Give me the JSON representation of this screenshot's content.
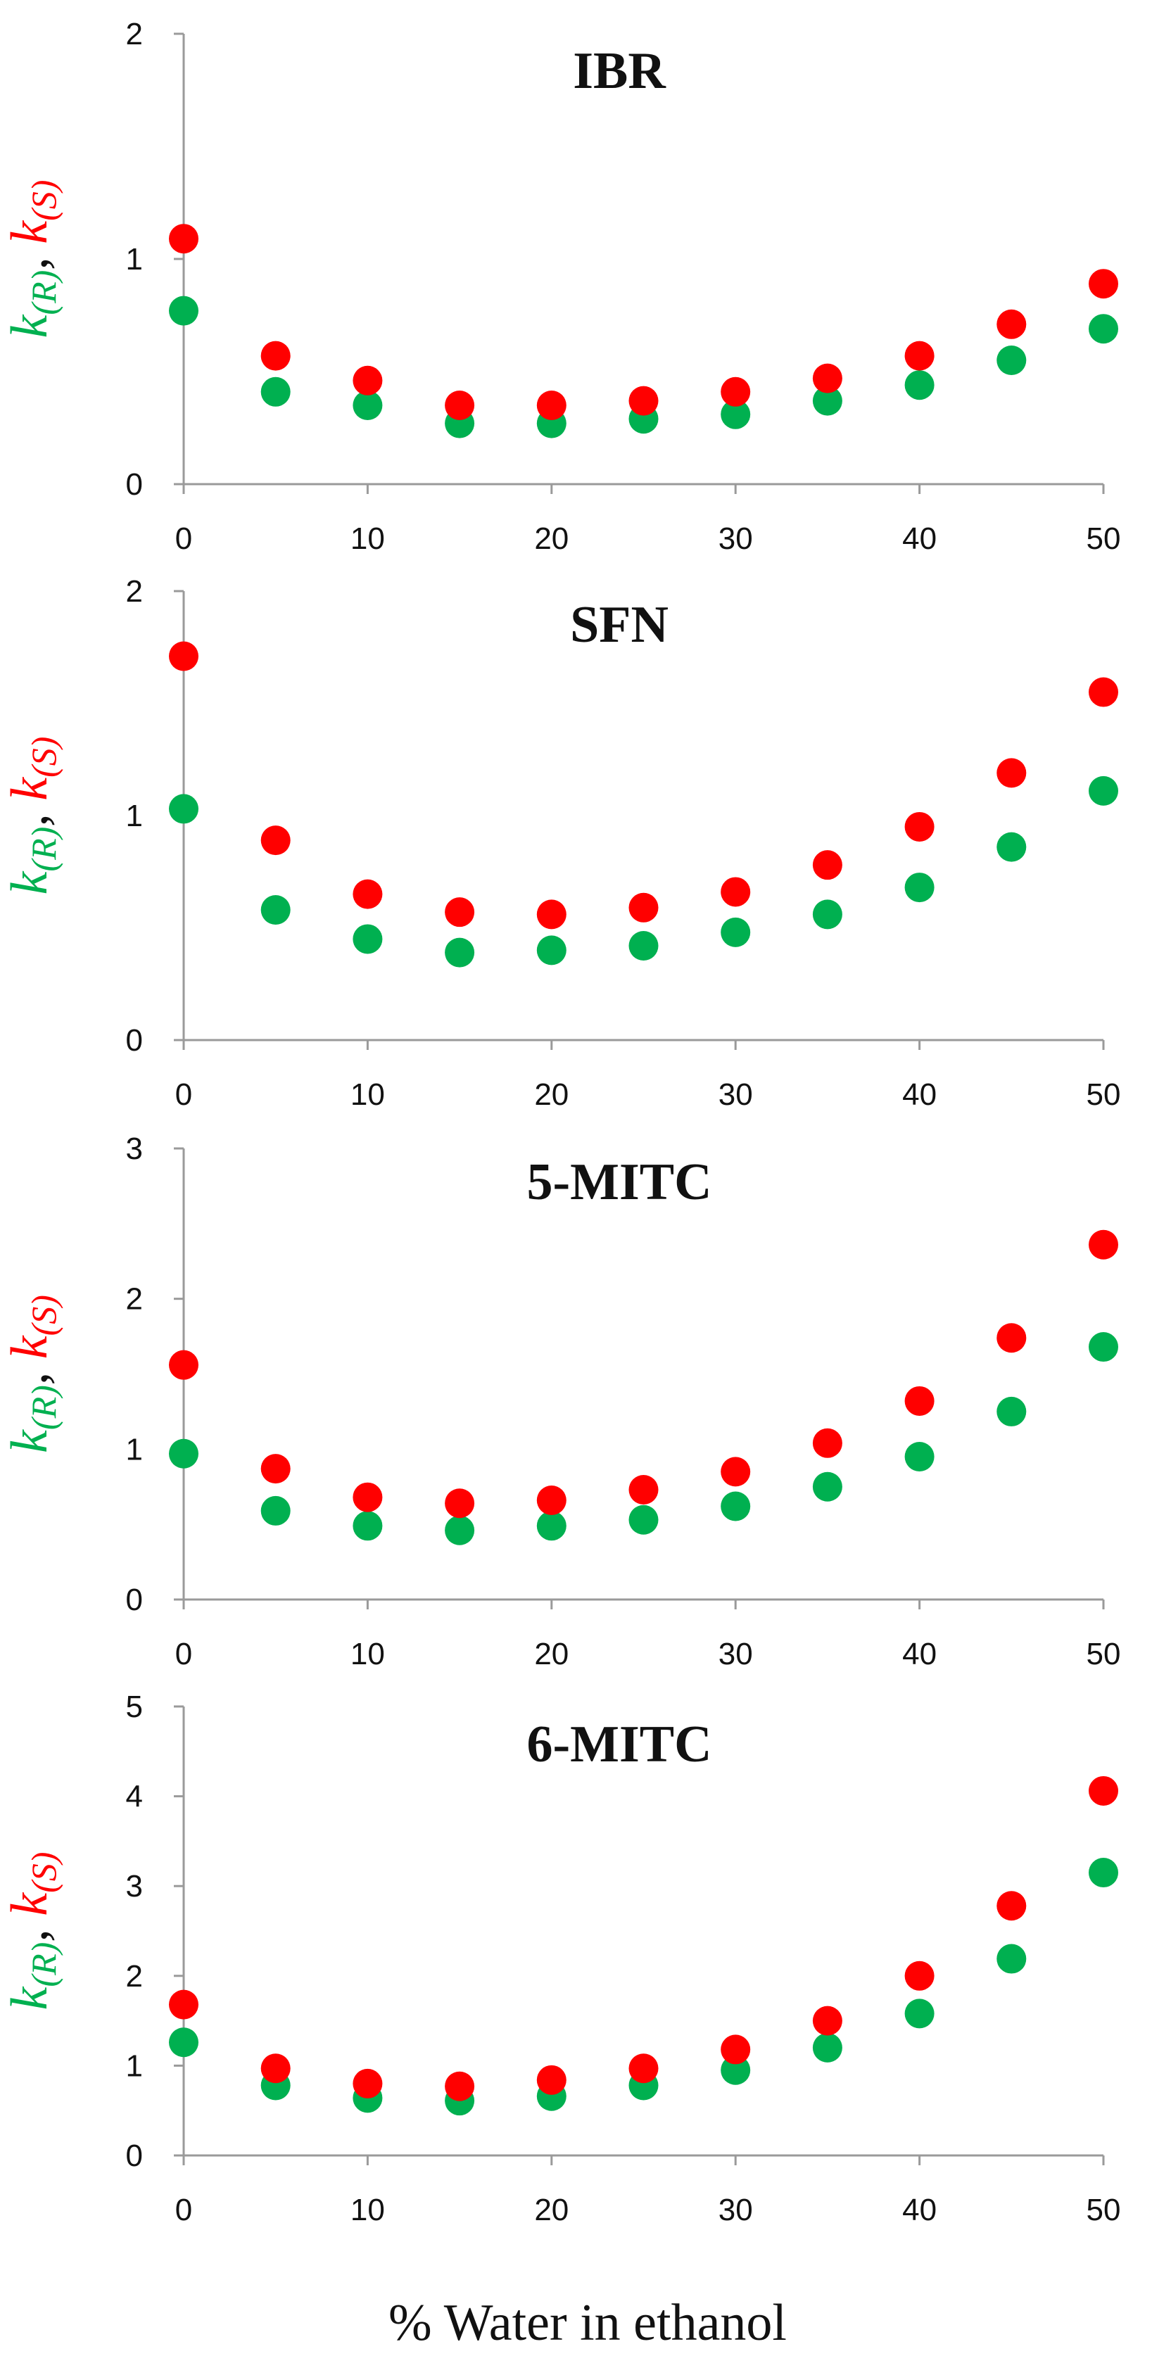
{
  "chart_data": [
    {
      "type": "scatter",
      "title": "IBR",
      "x": [
        0,
        5,
        10,
        15,
        20,
        25,
        30,
        35,
        40,
        45,
        50
      ],
      "xlim": [
        0,
        50
      ],
      "xticks": [
        0,
        10,
        20,
        30,
        40,
        50
      ],
      "ylim": [
        0,
        2
      ],
      "yticks": [
        0,
        1,
        2
      ],
      "ylabel": "k(R), k(S)",
      "series": [
        {
          "name": "k(R)",
          "color": "#00b050",
          "values": [
            0.77,
            0.41,
            0.35,
            0.27,
            0.27,
            0.29,
            0.31,
            0.37,
            0.44,
            0.55,
            0.69
          ]
        },
        {
          "name": "k(S)",
          "color": "#ff0000",
          "values": [
            1.09,
            0.57,
            0.46,
            0.35,
            0.35,
            0.37,
            0.41,
            0.47,
            0.57,
            0.71,
            0.89
          ]
        }
      ]
    },
    {
      "type": "scatter",
      "title": "SFN",
      "x": [
        0,
        5,
        10,
        15,
        20,
        25,
        30,
        35,
        40,
        45,
        50
      ],
      "xlim": [
        0,
        50
      ],
      "xticks": [
        0,
        10,
        20,
        30,
        40,
        50
      ],
      "ylim": [
        0,
        2
      ],
      "yticks": [
        0,
        1,
        2
      ],
      "ylabel": "k(R), k(S)",
      "series": [
        {
          "name": "k(R)",
          "color": "#00b050",
          "values": [
            1.03,
            0.58,
            0.45,
            0.39,
            0.4,
            0.42,
            0.48,
            0.56,
            0.68,
            0.86,
            1.11
          ]
        },
        {
          "name": "k(S)",
          "color": "#ff0000",
          "values": [
            1.71,
            0.89,
            0.65,
            0.57,
            0.56,
            0.59,
            0.66,
            0.78,
            0.95,
            1.19,
            1.55
          ]
        }
      ]
    },
    {
      "type": "scatter",
      "title": "5-MITC",
      "x": [
        0,
        5,
        10,
        15,
        20,
        25,
        30,
        35,
        40,
        45,
        50
      ],
      "xlim": [
        0,
        50
      ],
      "xticks": [
        0,
        10,
        20,
        30,
        40,
        50
      ],
      "ylim": [
        0,
        3
      ],
      "yticks": [
        0,
        1,
        2,
        3
      ],
      "ylabel": "k(R), k(S)",
      "series": [
        {
          "name": "k(R)",
          "color": "#00b050",
          "values": [
            0.97,
            0.59,
            0.49,
            0.46,
            0.49,
            0.53,
            0.62,
            0.75,
            0.95,
            1.25,
            1.68
          ]
        },
        {
          "name": "k(S)",
          "color": "#ff0000",
          "values": [
            1.56,
            0.87,
            0.68,
            0.64,
            0.66,
            0.73,
            0.85,
            1.04,
            1.32,
            1.74,
            2.36
          ]
        }
      ]
    },
    {
      "type": "scatter",
      "title": "6-MITC",
      "x": [
        0,
        5,
        10,
        15,
        20,
        25,
        30,
        35,
        40,
        45,
        50
      ],
      "xlim": [
        0,
        50
      ],
      "xticks": [
        0,
        10,
        20,
        30,
        40,
        50
      ],
      "ylim": [
        0,
        5
      ],
      "yticks": [
        0,
        1,
        2,
        3,
        4,
        5
      ],
      "ylabel": "k(R), k(S)",
      "series": [
        {
          "name": "k(R)",
          "color": "#00b050",
          "values": [
            1.26,
            0.78,
            0.64,
            0.61,
            0.66,
            0.78,
            0.95,
            1.2,
            1.58,
            2.19,
            3.15
          ]
        },
        {
          "name": "k(S)",
          "color": "#ff0000",
          "values": [
            1.68,
            0.97,
            0.8,
            0.77,
            0.84,
            0.97,
            1.18,
            1.5,
            2.0,
            2.78,
            4.06
          ]
        }
      ]
    }
  ],
  "xlabel": "% Water in ethanol",
  "ylabel_parts": {
    "r_letter": "k",
    "r_sub": "(R)",
    "separator": ", ",
    "s_letter": "k",
    "s_sub": "(S)"
  },
  "colors": {
    "k_r": "#00b050",
    "k_s": "#ff0000",
    "axis": "#9a9a9a",
    "text": "#111111"
  }
}
